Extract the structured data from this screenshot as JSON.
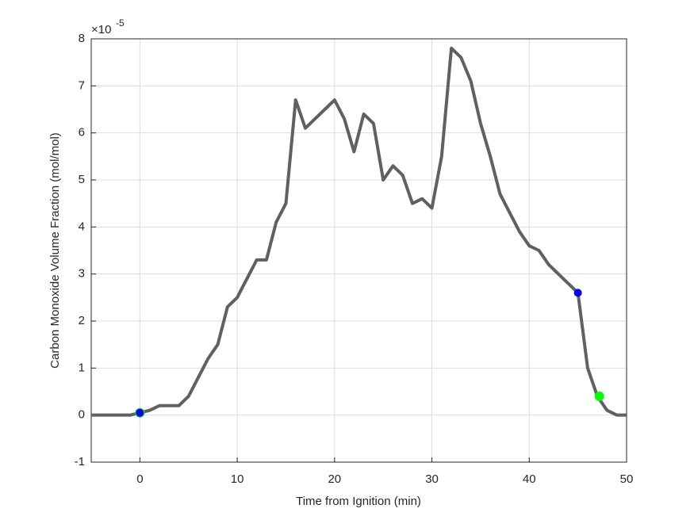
{
  "chart_data": {
    "type": "line",
    "xlabel": "Time from Ignition (min)",
    "ylabel": "Carbon Monoxide Volume Fraction (mol/mol)",
    "y_multiplier": {
      "base": "×10",
      "exponent": "-5"
    },
    "xlim": [
      -5,
      50
    ],
    "ylim": [
      -1,
      8
    ],
    "xticks": [
      0,
      10,
      20,
      30,
      40,
      50
    ],
    "yticks": [
      -1,
      0,
      1,
      2,
      3,
      4,
      5,
      6,
      7,
      8
    ],
    "grid": true,
    "series": [
      {
        "color": "#606060",
        "x": [
          -5,
          -4,
          -3,
          -2,
          -1,
          0,
          1,
          2,
          3,
          4,
          5,
          6,
          7,
          8,
          9,
          10,
          11,
          12,
          13,
          14,
          15,
          16,
          17,
          18,
          19,
          20,
          21,
          22,
          23,
          24,
          25,
          26,
          27,
          28,
          29,
          30,
          31,
          32,
          33,
          34,
          35,
          36,
          37,
          38,
          39,
          40,
          41,
          42,
          43,
          44,
          45,
          46,
          47,
          48,
          49,
          50
        ],
        "values": [
          0,
          0,
          0,
          0,
          0,
          0.05,
          0.1,
          0.2,
          0.2,
          0.2,
          0.4,
          0.8,
          1.2,
          1.5,
          2.3,
          2.5,
          2.9,
          3.3,
          3.3,
          4.1,
          4.5,
          6.7,
          6.1,
          6.3,
          6.5,
          6.7,
          6.3,
          5.6,
          6.4,
          6.2,
          5.0,
          5.3,
          5.1,
          4.5,
          4.6,
          4.4,
          5.5,
          7.8,
          7.6,
          7.1,
          6.2,
          5.5,
          4.7,
          4.3,
          3.9,
          3.6,
          3.5,
          3.2,
          3.0,
          2.8,
          2.6,
          1.0,
          0.4,
          0.1,
          0,
          0
        ]
      },
      {
        "type": "scatter",
        "color": "#00ff00",
        "x": [
          0,
          47.2
        ],
        "values": [
          0.05,
          0.4
        ]
      },
      {
        "type": "scatter",
        "color": "#0000ff",
        "x": [
          0,
          45
        ],
        "values": [
          0.05,
          2.6
        ]
      }
    ]
  }
}
